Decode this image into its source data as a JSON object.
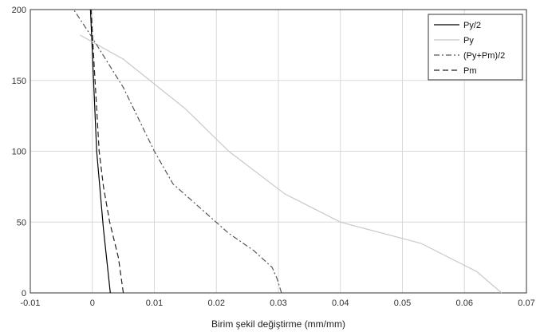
{
  "chart_data": {
    "type": "line",
    "title": "",
    "xlabel": "Birim şekil değiştirme (mm/mm)",
    "ylabel": "",
    "xlim": [
      -0.01,
      0.07
    ],
    "ylim": [
      0,
      200
    ],
    "xticks": [
      -0.01,
      0,
      0.01,
      0.02,
      0.03,
      0.04,
      0.05,
      0.06,
      0.07
    ],
    "xtick_labels": [
      "-0.01",
      "0",
      "0.01",
      "0.02",
      "0.03",
      "0.04",
      "0.05",
      "0.06",
      "0.07"
    ],
    "yticks": [
      0,
      50,
      100,
      150,
      200
    ],
    "ytick_labels": [
      "0",
      "50",
      "100",
      "150",
      "200"
    ],
    "grid": true,
    "legend_position": "top-right",
    "series": [
      {
        "name": "Py/2",
        "color": "#000000",
        "dash": "solid",
        "x": [
          0.0029,
          0.0018,
          0.0011,
          0.0007,
          0.0002,
          -0.0001,
          -0.0003
        ],
        "y": [
          0,
          45,
          80,
          100,
          150,
          180,
          200
        ]
      },
      {
        "name": "Py",
        "color": "#c8c8c8",
        "dash": "solid",
        "x": [
          0.066,
          0.062,
          0.053,
          0.04,
          0.031,
          0.022,
          0.015,
          0.005,
          -0.002
        ],
        "y": [
          0,
          15,
          35,
          50,
          70,
          100,
          130,
          165,
          182
        ]
      },
      {
        "name": "(Py+Pm)/2",
        "color": "#555555",
        "dash": "dashdot",
        "x": [
          0.0305,
          0.0298,
          0.029,
          0.026,
          0.022,
          0.013,
          0.01,
          0.005,
          0.0,
          -0.003
        ],
        "y": [
          0,
          10,
          18,
          30,
          42,
          77,
          100,
          145,
          180,
          200
        ]
      },
      {
        "name": "Pm",
        "color": "#222222",
        "dash": "dashed",
        "x": [
          0.005,
          0.0042,
          0.0028,
          0.0018,
          0.0011,
          0.0007,
          0.0003,
          -0.0002
        ],
        "y": [
          0,
          25,
          50,
          75,
          100,
          130,
          160,
          200
        ]
      }
    ]
  }
}
